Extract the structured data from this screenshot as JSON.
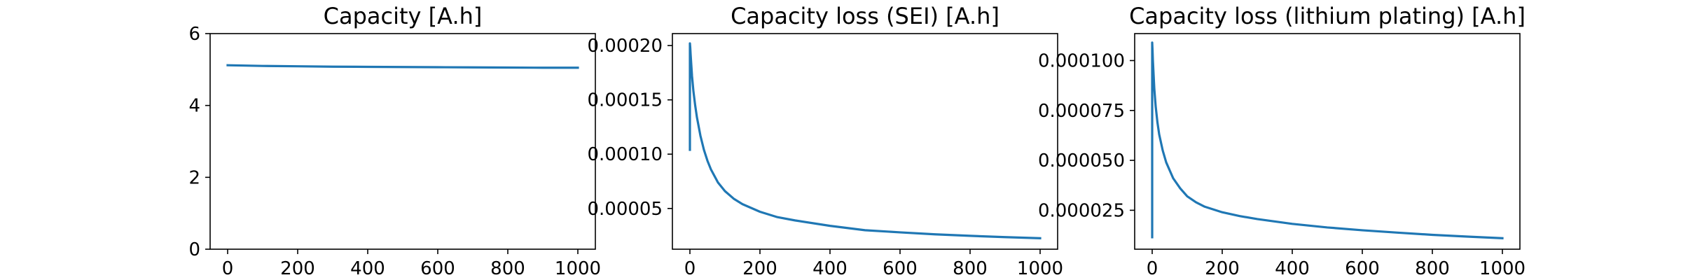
{
  "chart_data": [
    {
      "type": "line",
      "title": "Capacity [A.h]",
      "xlabel": "",
      "ylabel": "",
      "xlim": [
        -50,
        1050
      ],
      "ylim": [
        0,
        6
      ],
      "xticks": [
        0,
        200,
        400,
        600,
        800,
        1000
      ],
      "xtick_labels": [
        "0",
        "200",
        "400",
        "600",
        "800",
        "1000"
      ],
      "yticks": [
        0,
        2,
        4,
        6
      ],
      "ytick_labels": [
        "0",
        "2",
        "4",
        "6"
      ],
      "grid": false,
      "color": "#1f77b4",
      "series": [
        {
          "x": [
            0,
            50,
            100,
            200,
            300,
            400,
            500,
            600,
            700,
            800,
            900,
            1000
          ],
          "y": [
            5.12,
            5.11,
            5.1,
            5.09,
            5.08,
            5.075,
            5.07,
            5.065,
            5.06,
            5.055,
            5.05,
            5.05
          ]
        }
      ]
    },
    {
      "type": "line",
      "title": "Capacity loss (SEI) [A.h]",
      "xlabel": "",
      "ylabel": "",
      "xlim": [
        -50,
        1050
      ],
      "ylim": [
        1.25e-05,
        0.000211
      ],
      "xticks": [
        0,
        200,
        400,
        600,
        800,
        1000
      ],
      "xtick_labels": [
        "0",
        "200",
        "400",
        "600",
        "800",
        "1000"
      ],
      "yticks": [
        5e-05,
        0.0001,
        0.00015,
        0.0002
      ],
      "ytick_labels": [
        "0.00005",
        "0.00010",
        "0.00015",
        "0.00020"
      ],
      "grid": false,
      "color": "#1f77b4",
      "series": [
        {
          "x": [
            0,
            0,
            1,
            2,
            4,
            6,
            10,
            15,
            20,
            30,
            40,
            50,
            60,
            80,
            100,
            125,
            150,
            200,
            250,
            300,
            400,
            500,
            600,
            700,
            800,
            900,
            1000
          ],
          "y": [
            0.000104,
            0.000202,
            0.000198,
            0.000192,
            0.000182,
            0.000172,
            0.000158,
            0.000145,
            0.000134,
            0.000117,
            0.000104,
            9.4e-05,
            8.6e-05,
            7.4e-05,
            6.6e-05,
            5.9e-05,
            5.4e-05,
            4.7e-05,
            4.2e-05,
            3.9e-05,
            3.4e-05,
            3e-05,
            2.8e-05,
            2.62e-05,
            2.48e-05,
            2.36e-05,
            2.26e-05
          ]
        }
      ]
    },
    {
      "type": "line",
      "title": "Capacity loss (lithium plating) [A.h]",
      "xlabel": "",
      "ylabel": "",
      "xlim": [
        -50,
        1050
      ],
      "ylim": [
        5.5e-06,
        0.0001135
      ],
      "xticks": [
        0,
        200,
        400,
        600,
        800,
        1000
      ],
      "xtick_labels": [
        "0",
        "200",
        "400",
        "600",
        "800",
        "1000"
      ],
      "yticks": [
        2.5e-05,
        5e-05,
        7.5e-05,
        0.0001
      ],
      "ytick_labels": [
        "0.000025",
        "0.000050",
        "0.000075",
        "0.000100"
      ],
      "grid": false,
      "color": "#1f77b4",
      "series": [
        {
          "x": [
            0,
            0,
            1,
            2,
            4,
            6,
            10,
            15,
            20,
            30,
            40,
            50,
            60,
            80,
            100,
            125,
            150,
            200,
            250,
            300,
            400,
            500,
            600,
            700,
            800,
            900,
            1000
          ],
          "y": [
            1.15e-05,
            0.000109,
            0.000105,
            0.0001,
            9.3e-05,
            8.6e-05,
            7.7e-05,
            6.9e-05,
            6.3e-05,
            5.5e-05,
            4.9e-05,
            4.5e-05,
            4.1e-05,
            3.6e-05,
            3.2e-05,
            2.9e-05,
            2.68e-05,
            2.4e-05,
            2.21e-05,
            2.06e-05,
            1.82e-05,
            1.64e-05,
            1.5e-05,
            1.38e-05,
            1.27e-05,
            1.18e-05,
            1.1e-05
          ]
        }
      ]
    }
  ]
}
